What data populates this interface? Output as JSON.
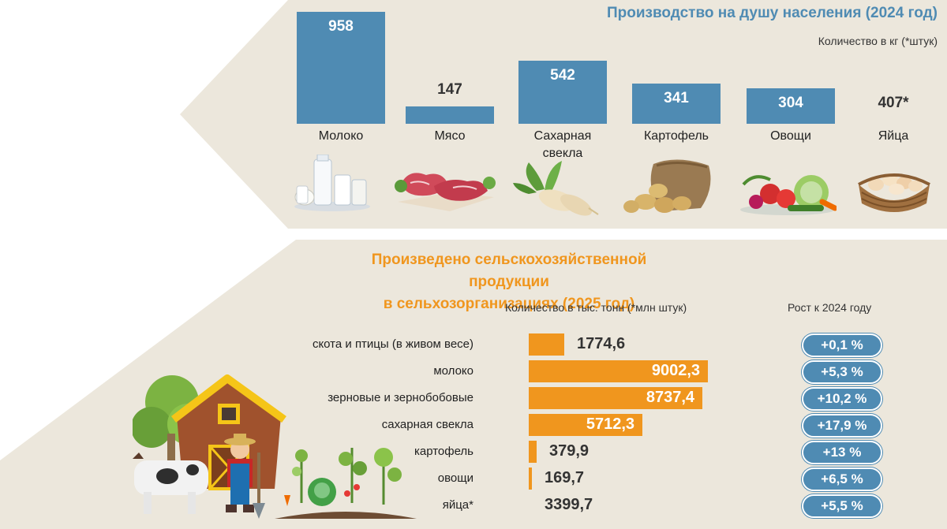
{
  "top": {
    "title": "Производство на душу населения (2024 год)",
    "subtitle": "Количество в кг (*штук)",
    "chart_data": {
      "type": "bar",
      "title": "Производство на душу населения (2024 год)",
      "ylabel": "Количество в кг (*штук)",
      "categories": [
        "Молоко",
        "Мясо",
        "Сахарная свекла",
        "Картофель",
        "Овощи",
        "Яйца"
      ],
      "values": [
        958,
        147,
        542,
        341,
        304,
        407
      ],
      "value_labels": [
        "958",
        "147",
        "542",
        "341",
        "304",
        "407*"
      ],
      "category_lines": [
        [
          "Молоко"
        ],
        [
          "Мясо"
        ],
        [
          "Сахарная",
          "свекла"
        ],
        [
          "Картофель"
        ],
        [
          "Овощи"
        ],
        [
          "Яйца"
        ]
      ],
      "bar_drawn": [
        true,
        true,
        true,
        true,
        true,
        false
      ],
      "color": "#4f8bb3"
    }
  },
  "bottom": {
    "title_line1": "Произведено сельскохозяйственной продукции",
    "title_line2": "в сельхозорганизациях (2025 год)",
    "col_quantity": "Количество в тыс. тонн (*млн штук)",
    "col_growth": "Рост к 2024 году",
    "chart_data": {
      "type": "bar",
      "orientation": "horizontal",
      "categories": [
        "скота и птицы (в живом весе)",
        "молоко",
        "зерновые и зернобобовые",
        "сахарная свекла",
        "картофель",
        "овощи",
        "яйца*"
      ],
      "values": [
        1774.6,
        9002.3,
        8737.4,
        5712.3,
        379.9,
        169.7,
        3399.7
      ],
      "value_labels": [
        "1774,6",
        "9002,3",
        "8737,4",
        "5712,3",
        "379,9",
        "169,7",
        "3399,7"
      ],
      "growth_labels": [
        "+0,1 %",
        "+5,3 %",
        "+10,2 %",
        "+17,9 %",
        "+13 %",
        "+6,5 %",
        "+5,5 %"
      ],
      "bar_drawn": [
        true,
        true,
        true,
        true,
        true,
        true,
        false
      ],
      "color": "#f0961e",
      "growth_color": "#4f8bb3"
    }
  }
}
